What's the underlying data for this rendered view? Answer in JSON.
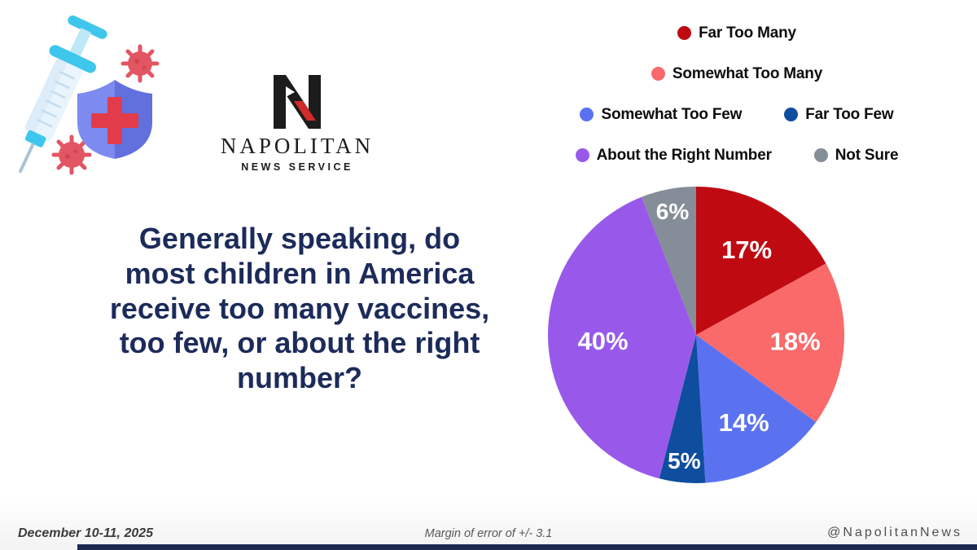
{
  "page": {
    "background": "#ffffff",
    "accent_navy": "#1c2b5a"
  },
  "logo": {
    "name_line": "NAPOLITAN",
    "tagline": "NEWS SERVICE"
  },
  "illustration": {
    "alt": "vaccine syringe with protection shield and virus germs"
  },
  "question": {
    "lines": [
      "Generally speaking, do",
      "most children in America",
      "receive too many vaccines,",
      "too few, or about the right",
      "number?"
    ]
  },
  "chart_data": {
    "type": "pie",
    "title": "Generally speaking, do most children in America receive too many vaccines, too few, or about the right number?",
    "start_angle_deg": 0,
    "direction": "clockwise",
    "label_format": "percent",
    "legend_position": "top-right",
    "slices": [
      {
        "label": "Far Too Many",
        "value": 17,
        "color": "#c00a12",
        "display": "17%"
      },
      {
        "label": "Somewhat Too Many",
        "value": 18,
        "color": "#fa6a6a",
        "display": "18%"
      },
      {
        "label": "Somewhat Too Few",
        "value": 14,
        "color": "#5b72f0",
        "display": "14%"
      },
      {
        "label": "Far Too Few",
        "value": 5,
        "color": "#0f4d9e",
        "display": "5%"
      },
      {
        "label": "About the Right Number",
        "value": 40,
        "color": "#9859ea",
        "display": "40%"
      },
      {
        "label": "Not Sure",
        "value": 6,
        "color": "#858d98",
        "display": "6%"
      }
    ]
  },
  "footer": {
    "date_range": "December 10-11, 2025",
    "margin_note": "Margin of error of +/- 3.1",
    "social_handle": "@NapolitanNews"
  }
}
